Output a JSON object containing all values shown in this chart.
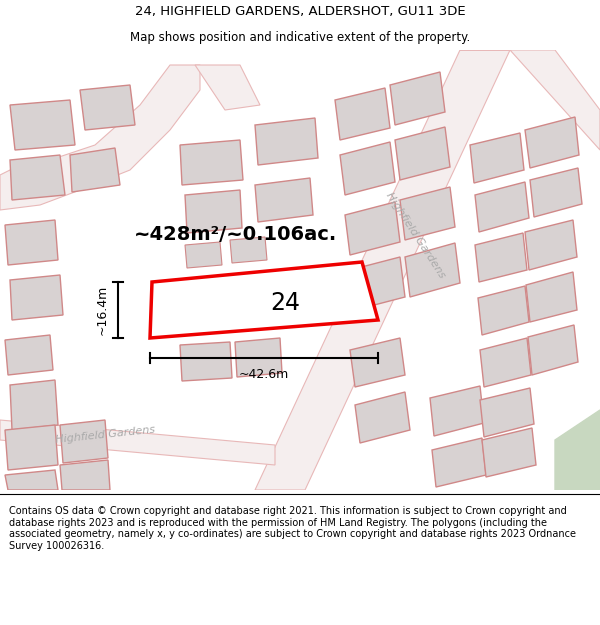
{
  "title": "24, HIGHFIELD GARDENS, ALDERSHOT, GU11 3DE",
  "subtitle": "Map shows position and indicative extent of the property.",
  "footer": "Contains OS data © Crown copyright and database right 2021. This information is subject to Crown copyright and database rights 2023 and is reproduced with the permission of HM Land Registry. The polygons (including the associated geometry, namely x, y co-ordinates) are subject to Crown copyright and database rights 2023 Ordnance Survey 100026316.",
  "map_bg": "#f7f3f3",
  "road_color": "#e8b8b8",
  "road_fill": "#f5eeee",
  "building_fill": "#d8d2d2",
  "building_edge": "#d08888",
  "highlight_color": "#ee0000",
  "highlight_fill": "#ffffff",
  "green_color": "#c8d8c0",
  "road_label_color": "#aaaaaa",
  "area_label": "~428m²/~0.106ac.",
  "number_label": "24",
  "dim_width": "~42.6m",
  "dim_height": "~16.4m",
  "road_label_diag": "Highfield Gardens",
  "road_label_horiz": "Highfield Gardens"
}
